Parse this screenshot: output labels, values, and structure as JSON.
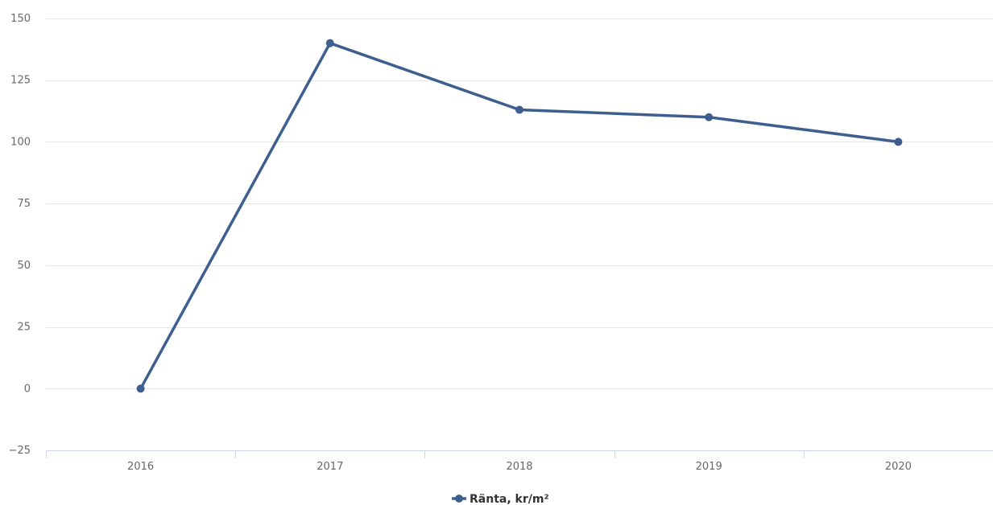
{
  "chart_data": {
    "type": "line",
    "categories": [
      "2016",
      "2017",
      "2018",
      "2019",
      "2020"
    ],
    "series": [
      {
        "name": "Ränta, kr/m²",
        "values": [
          0,
          140,
          113,
          110,
          100
        ],
        "color": "#3d5f8f"
      }
    ],
    "title": "",
    "xlabel": "",
    "ylabel": "",
    "ylim": [
      -25,
      150
    ],
    "yticks": [
      -25,
      0,
      25,
      50,
      75,
      100,
      125,
      150
    ],
    "grid": true,
    "legend_position": "bottom-center",
    "colors": {
      "grid": "#e6e6e6",
      "axis": "#ccd6eb",
      "tick_label": "#666666"
    }
  }
}
